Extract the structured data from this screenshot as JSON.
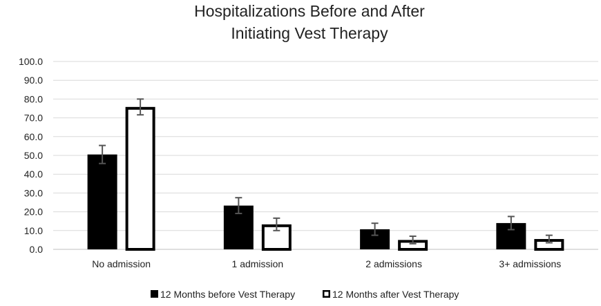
{
  "chart_data": {
    "type": "bar",
    "title": [
      "Hospitalizations Before and After",
      "Initiating Vest Therapy"
    ],
    "categories": [
      "No admission",
      "1 admission",
      "2 admissions",
      "3+ admissions"
    ],
    "series": [
      {
        "name": "12 Months before Vest Therapy",
        "values": [
          50.5,
          23.3,
          10.7,
          14.0
        ],
        "errors": [
          4.8,
          4.2,
          3.2,
          3.5
        ],
        "fill": "#000000",
        "stroke": "#000000"
      },
      {
        "name": "12 Months after Vest Therapy",
        "values": [
          75.8,
          13.3,
          5.0,
          5.5
        ],
        "errors": [
          4.2,
          3.3,
          2.0,
          2.0
        ],
        "fill": "#ffffff",
        "stroke": "#000000"
      }
    ],
    "ylim": [
      0,
      100
    ],
    "yticks": [
      "0.0",
      "10.0",
      "20.0",
      "30.0",
      "40.0",
      "50.0",
      "60.0",
      "70.0",
      "80.0",
      "90.0",
      "100.0"
    ],
    "xlabel": "",
    "ylabel": "",
    "grid": true,
    "legend_position": "bottom",
    "error_bar_color": "#555555"
  }
}
